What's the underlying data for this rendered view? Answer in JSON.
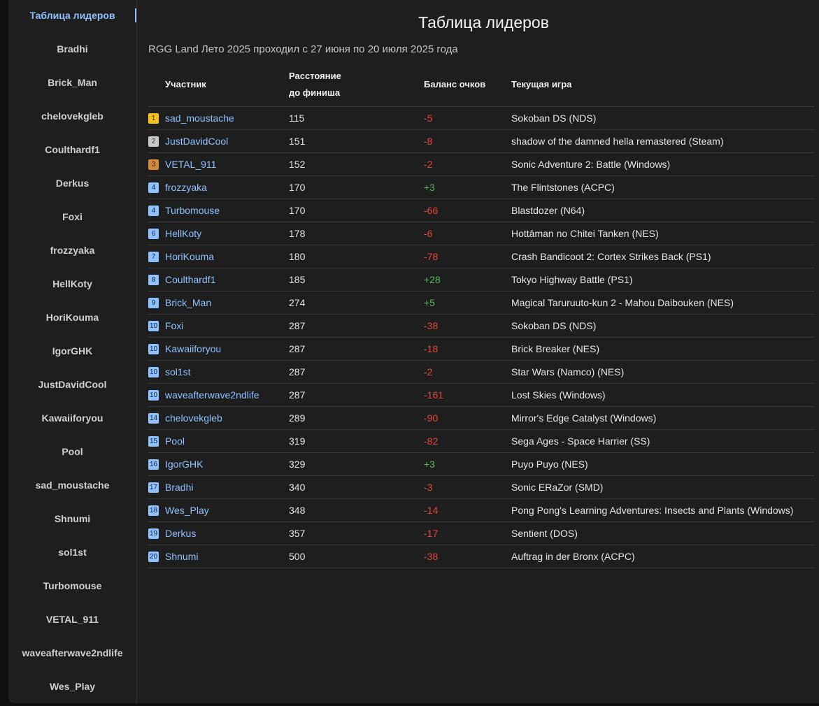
{
  "sidebar": {
    "items": [
      "Таблица лидеров",
      "Bradhi",
      "Brick_Man",
      "chelovekgleb",
      "Coulthardf1",
      "Derkus",
      "Foxi",
      "frozzyaka",
      "HellKoty",
      "HoriKouma",
      "IgorGHK",
      "JustDavidCool",
      "Kawaiiforyou",
      "Pool",
      "sad_moustache",
      "Shnumi",
      "sol1st",
      "Turbomouse",
      "VETAL_911",
      "waveafterwave2ndlife",
      "Wes_Play"
    ]
  },
  "main": {
    "title": "Таблица лидеров",
    "subtitle": "RGG Land Лето 2025 проходил с 27 июня по 20 июля 2025 года",
    "headers": {
      "participant": "Участник",
      "distance_line1": "Расстояние",
      "distance_line2": "до финиша",
      "balance": "Баланс очков",
      "game": "Текущая игра"
    },
    "rows": [
      {
        "rank": "1",
        "name": "sad_moustache",
        "distance": "115",
        "balance": "-5",
        "game": "Sokoban DS (NDS)"
      },
      {
        "rank": "2",
        "name": "JustDavidCool",
        "distance": "151",
        "balance": "-8",
        "game": "shadow of the damned hella remastered (Steam)"
      },
      {
        "rank": "3",
        "name": "VETAL_911",
        "distance": "152",
        "balance": "-2",
        "game": "Sonic Adventure 2: Battle (Windows)"
      },
      {
        "rank": "4",
        "name": "frozzyaka",
        "distance": "170",
        "balance": "+3",
        "game": "The Flintstones (ACPC)"
      },
      {
        "rank": "4",
        "name": "Turbomouse",
        "distance": "170",
        "balance": "-66",
        "game": "Blastdozer (N64)"
      },
      {
        "rank": "6",
        "name": "HellKoty",
        "distance": "178",
        "balance": "-6",
        "game": "Hottāman no Chitei Tanken (NES)"
      },
      {
        "rank": "7",
        "name": "HoriKouma",
        "distance": "180",
        "balance": "-78",
        "game": "Crash Bandicoot 2: Cortex Strikes Back (PS1)"
      },
      {
        "rank": "8",
        "name": "Coulthardf1",
        "distance": "185",
        "balance": "+28",
        "game": "Tokyo Highway Battle (PS1)"
      },
      {
        "rank": "9",
        "name": "Brick_Man",
        "distance": "274",
        "balance": "+5",
        "game": "Magical Taruruuto-kun 2 - Mahou Daibouken (NES)"
      },
      {
        "rank": "10",
        "name": "Foxi",
        "distance": "287",
        "balance": "-38",
        "game": "Sokoban DS (NDS)"
      },
      {
        "rank": "10",
        "name": "Kawaiiforyou",
        "distance": "287",
        "balance": "-18",
        "game": "Brick Breaker (NES)"
      },
      {
        "rank": "10",
        "name": "sol1st",
        "distance": "287",
        "balance": "-2",
        "game": "Star Wars (Namco) (NES)"
      },
      {
        "rank": "10",
        "name": "waveafterwave2ndlife",
        "distance": "287",
        "balance": "-161",
        "game": "Lost Skies (Windows)"
      },
      {
        "rank": "14",
        "name": "chelovekgleb",
        "distance": "289",
        "balance": "-90",
        "game": "Mirror's Edge Catalyst (Windows)"
      },
      {
        "rank": "15",
        "name": "Pool",
        "distance": "319",
        "balance": "-82",
        "game": "Sega Ages - Space Harrier (SS)"
      },
      {
        "rank": "16",
        "name": "IgorGHK",
        "distance": "329",
        "balance": "+3",
        "game": "Puyo Puyo (NES)"
      },
      {
        "rank": "17",
        "name": "Bradhi",
        "distance": "340",
        "balance": "-3",
        "game": "Sonic ERaZor (SMD)"
      },
      {
        "rank": "18",
        "name": "Wes_Play",
        "distance": "348",
        "balance": "-14",
        "game": "Pong Pong's Learning Adventures: Insects and Plants (Windows)"
      },
      {
        "rank": "19",
        "name": "Derkus",
        "distance": "357",
        "balance": "-17",
        "game": "Sentient (DOS)"
      },
      {
        "rank": "20",
        "name": "Shnumi",
        "distance": "500",
        "balance": "-38",
        "game": "Auftrag in der Bronx (ACPC)"
      }
    ]
  },
  "colors": {
    "accent": "#8fc1ff",
    "negative": "#e5473e",
    "positive": "#58b85a",
    "gold": "#f4c21a",
    "silver": "#c8c8c8",
    "bronze": "#d08a3a"
  }
}
